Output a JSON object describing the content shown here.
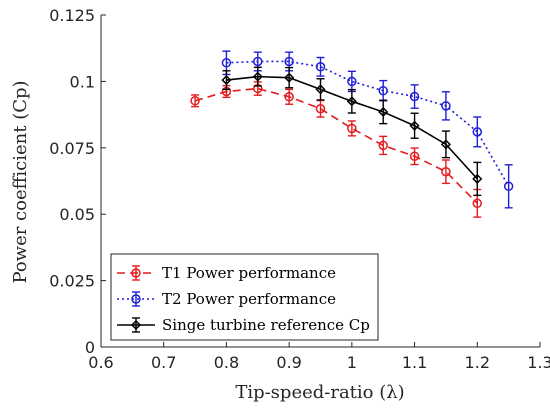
{
  "chart_data": {
    "type": "line",
    "xlabel": "Tip-speed-ratio (λ)",
    "ylabel": "Power coefficient (Cp)",
    "xlim": [
      0.6,
      1.3
    ],
    "ylim": [
      0,
      0.125
    ],
    "x_ticks": [
      0.6,
      0.7,
      0.8,
      0.9,
      1.0,
      1.1,
      1.2,
      1.3
    ],
    "x_tick_labels": [
      "0.6",
      "0.7",
      "0.8",
      "0.9",
      "1",
      "1.1",
      "1.2",
      "1.3"
    ],
    "y_ticks": [
      0,
      0.025,
      0.05,
      0.075,
      0.1,
      0.125
    ],
    "y_tick_labels": [
      "0",
      "0.025",
      "0.05",
      "0.075",
      "0.1",
      "0.125"
    ],
    "grid": false,
    "legend_position": "bottom-left",
    "series": [
      {
        "name": "T1 Power performance",
        "color": "#e41a1c",
        "line_style": "dashed",
        "marker": "circle",
        "x": [
          0.75,
          0.8,
          0.85,
          0.9,
          0.95,
          1.0,
          1.05,
          1.1,
          1.15,
          1.2
        ],
        "y": [
          0.0927,
          0.0962,
          0.0973,
          0.0942,
          0.0897,
          0.0823,
          0.0759,
          0.0718,
          0.066,
          0.0541
        ],
        "error": [
          0.0022,
          0.0022,
          0.0025,
          0.0028,
          0.0031,
          0.0028,
          0.0034,
          0.0031,
          0.0044,
          0.0052
        ]
      },
      {
        "name": "T2 Power performance",
        "color": "#1f1fd6",
        "line_style": "dotted",
        "marker": "circle",
        "x": [
          0.8,
          0.85,
          0.9,
          0.95,
          1.0,
          1.05,
          1.1,
          1.15,
          1.2,
          1.25
        ],
        "y": [
          0.107,
          0.1075,
          0.1075,
          0.1055,
          0.1,
          0.0965,
          0.0943,
          0.0908,
          0.081,
          0.0605
        ],
        "error": [
          0.0044,
          0.0035,
          0.0035,
          0.0035,
          0.0038,
          0.0038,
          0.0044,
          0.0053,
          0.0056,
          0.0081
        ]
      },
      {
        "name": "Singe turbine reference Cp",
        "color": "#000000",
        "line_style": "solid",
        "marker": "diamond",
        "x": [
          0.8,
          0.85,
          0.9,
          0.95,
          1.0,
          1.05,
          1.1,
          1.15,
          1.2
        ],
        "y": [
          0.1005,
          0.1018,
          0.1014,
          0.097,
          0.0925,
          0.0885,
          0.0833,
          0.0763,
          0.0633
        ],
        "error": [
          0.0035,
          0.0035,
          0.0038,
          0.004,
          0.0044,
          0.0044,
          0.0047,
          0.005,
          0.0062
        ]
      }
    ]
  }
}
